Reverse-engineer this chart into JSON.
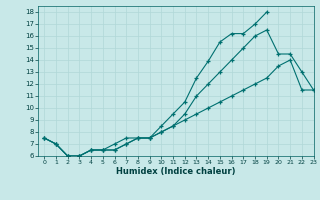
{
  "xlabel": "Humidex (Indice chaleur)",
  "bg_color": "#c8e8e8",
  "grid_color": "#b0d8d8",
  "line_color": "#007070",
  "xlim": [
    -0.5,
    23
  ],
  "ylim": [
    6,
    18.5
  ],
  "xticks": [
    0,
    1,
    2,
    3,
    4,
    5,
    6,
    7,
    8,
    9,
    10,
    11,
    12,
    13,
    14,
    15,
    16,
    17,
    18,
    19,
    20,
    21,
    22,
    23
  ],
  "yticks": [
    6,
    7,
    8,
    9,
    10,
    11,
    12,
    13,
    14,
    15,
    16,
    17,
    18
  ],
  "line1_x": [
    0,
    1,
    2,
    3,
    4,
    5,
    6,
    7,
    8,
    9,
    10,
    11,
    12,
    13,
    14,
    15,
    16,
    17,
    18,
    19
  ],
  "line1_y": [
    7.5,
    7.0,
    6.0,
    6.0,
    6.5,
    6.5,
    6.5,
    7.0,
    7.5,
    7.5,
    8.5,
    9.5,
    10.5,
    12.5,
    13.9,
    15.5,
    16.2,
    16.2,
    17.0,
    18.0
  ],
  "line2_x": [
    0,
    1,
    2,
    3,
    4,
    5,
    6,
    7,
    8,
    9,
    10,
    11,
    12,
    13,
    14,
    15,
    16,
    17,
    18,
    19,
    20,
    21,
    22,
    23
  ],
  "line2_y": [
    7.5,
    7.0,
    6.0,
    6.0,
    6.5,
    6.5,
    7.0,
    7.5,
    7.5,
    7.5,
    8.0,
    8.5,
    9.5,
    11.0,
    12.0,
    13.0,
    14.0,
    15.0,
    16.0,
    16.5,
    14.5,
    14.5,
    13.0,
    11.5
  ],
  "line3_x": [
    0,
    1,
    2,
    3,
    4,
    5,
    6,
    7,
    8,
    9,
    10,
    11,
    12,
    13,
    14,
    15,
    16,
    17,
    18,
    19,
    20,
    21,
    22,
    23
  ],
  "line3_y": [
    7.5,
    7.0,
    6.0,
    6.0,
    6.5,
    6.5,
    6.5,
    7.0,
    7.5,
    7.5,
    8.0,
    8.5,
    9.0,
    9.5,
    10.0,
    10.5,
    11.0,
    11.5,
    12.0,
    12.5,
    13.5,
    14.0,
    11.5,
    11.5
  ]
}
